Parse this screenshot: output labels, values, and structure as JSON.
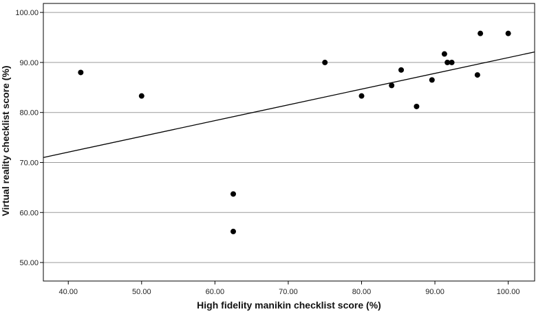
{
  "chart_data": {
    "type": "scatter",
    "title": "",
    "xlabel": "High fidelity manikin checklist score (%)",
    "ylabel": "Virtual reality checklist score (%)",
    "xlim": [
      36.6,
      103.6
    ],
    "ylim": [
      46.3,
      101.8
    ],
    "x_ticks": [
      40,
      50,
      60,
      70,
      80,
      90,
      100
    ],
    "y_ticks": [
      50,
      60,
      70,
      80,
      90,
      100
    ],
    "tick_format_decimals": 2,
    "grid": "horizontal",
    "legend": "none",
    "points": [
      {
        "x": 41.7,
        "y": 88.0
      },
      {
        "x": 50.0,
        "y": 83.3
      },
      {
        "x": 62.5,
        "y": 63.7
      },
      {
        "x": 62.5,
        "y": 56.2
      },
      {
        "x": 75.0,
        "y": 90.0
      },
      {
        "x": 80.0,
        "y": 83.3
      },
      {
        "x": 84.1,
        "y": 85.4
      },
      {
        "x": 85.4,
        "y": 88.5
      },
      {
        "x": 87.5,
        "y": 81.2
      },
      {
        "x": 89.6,
        "y": 86.5
      },
      {
        "x": 91.3,
        "y": 91.7
      },
      {
        "x": 91.7,
        "y": 90.0
      },
      {
        "x": 92.3,
        "y": 90.0
      },
      {
        "x": 95.8,
        "y": 87.5
      },
      {
        "x": 96.2,
        "y": 95.8
      },
      {
        "x": 100.0,
        "y": 95.8
      }
    ],
    "fit_line": {
      "x": [
        36.6,
        103.6
      ],
      "y": [
        71.0,
        92.1
      ]
    },
    "colors": {
      "points": "#000000",
      "line": "#000000",
      "grid": "#9a9a9a",
      "axis": "#000000"
    }
  }
}
